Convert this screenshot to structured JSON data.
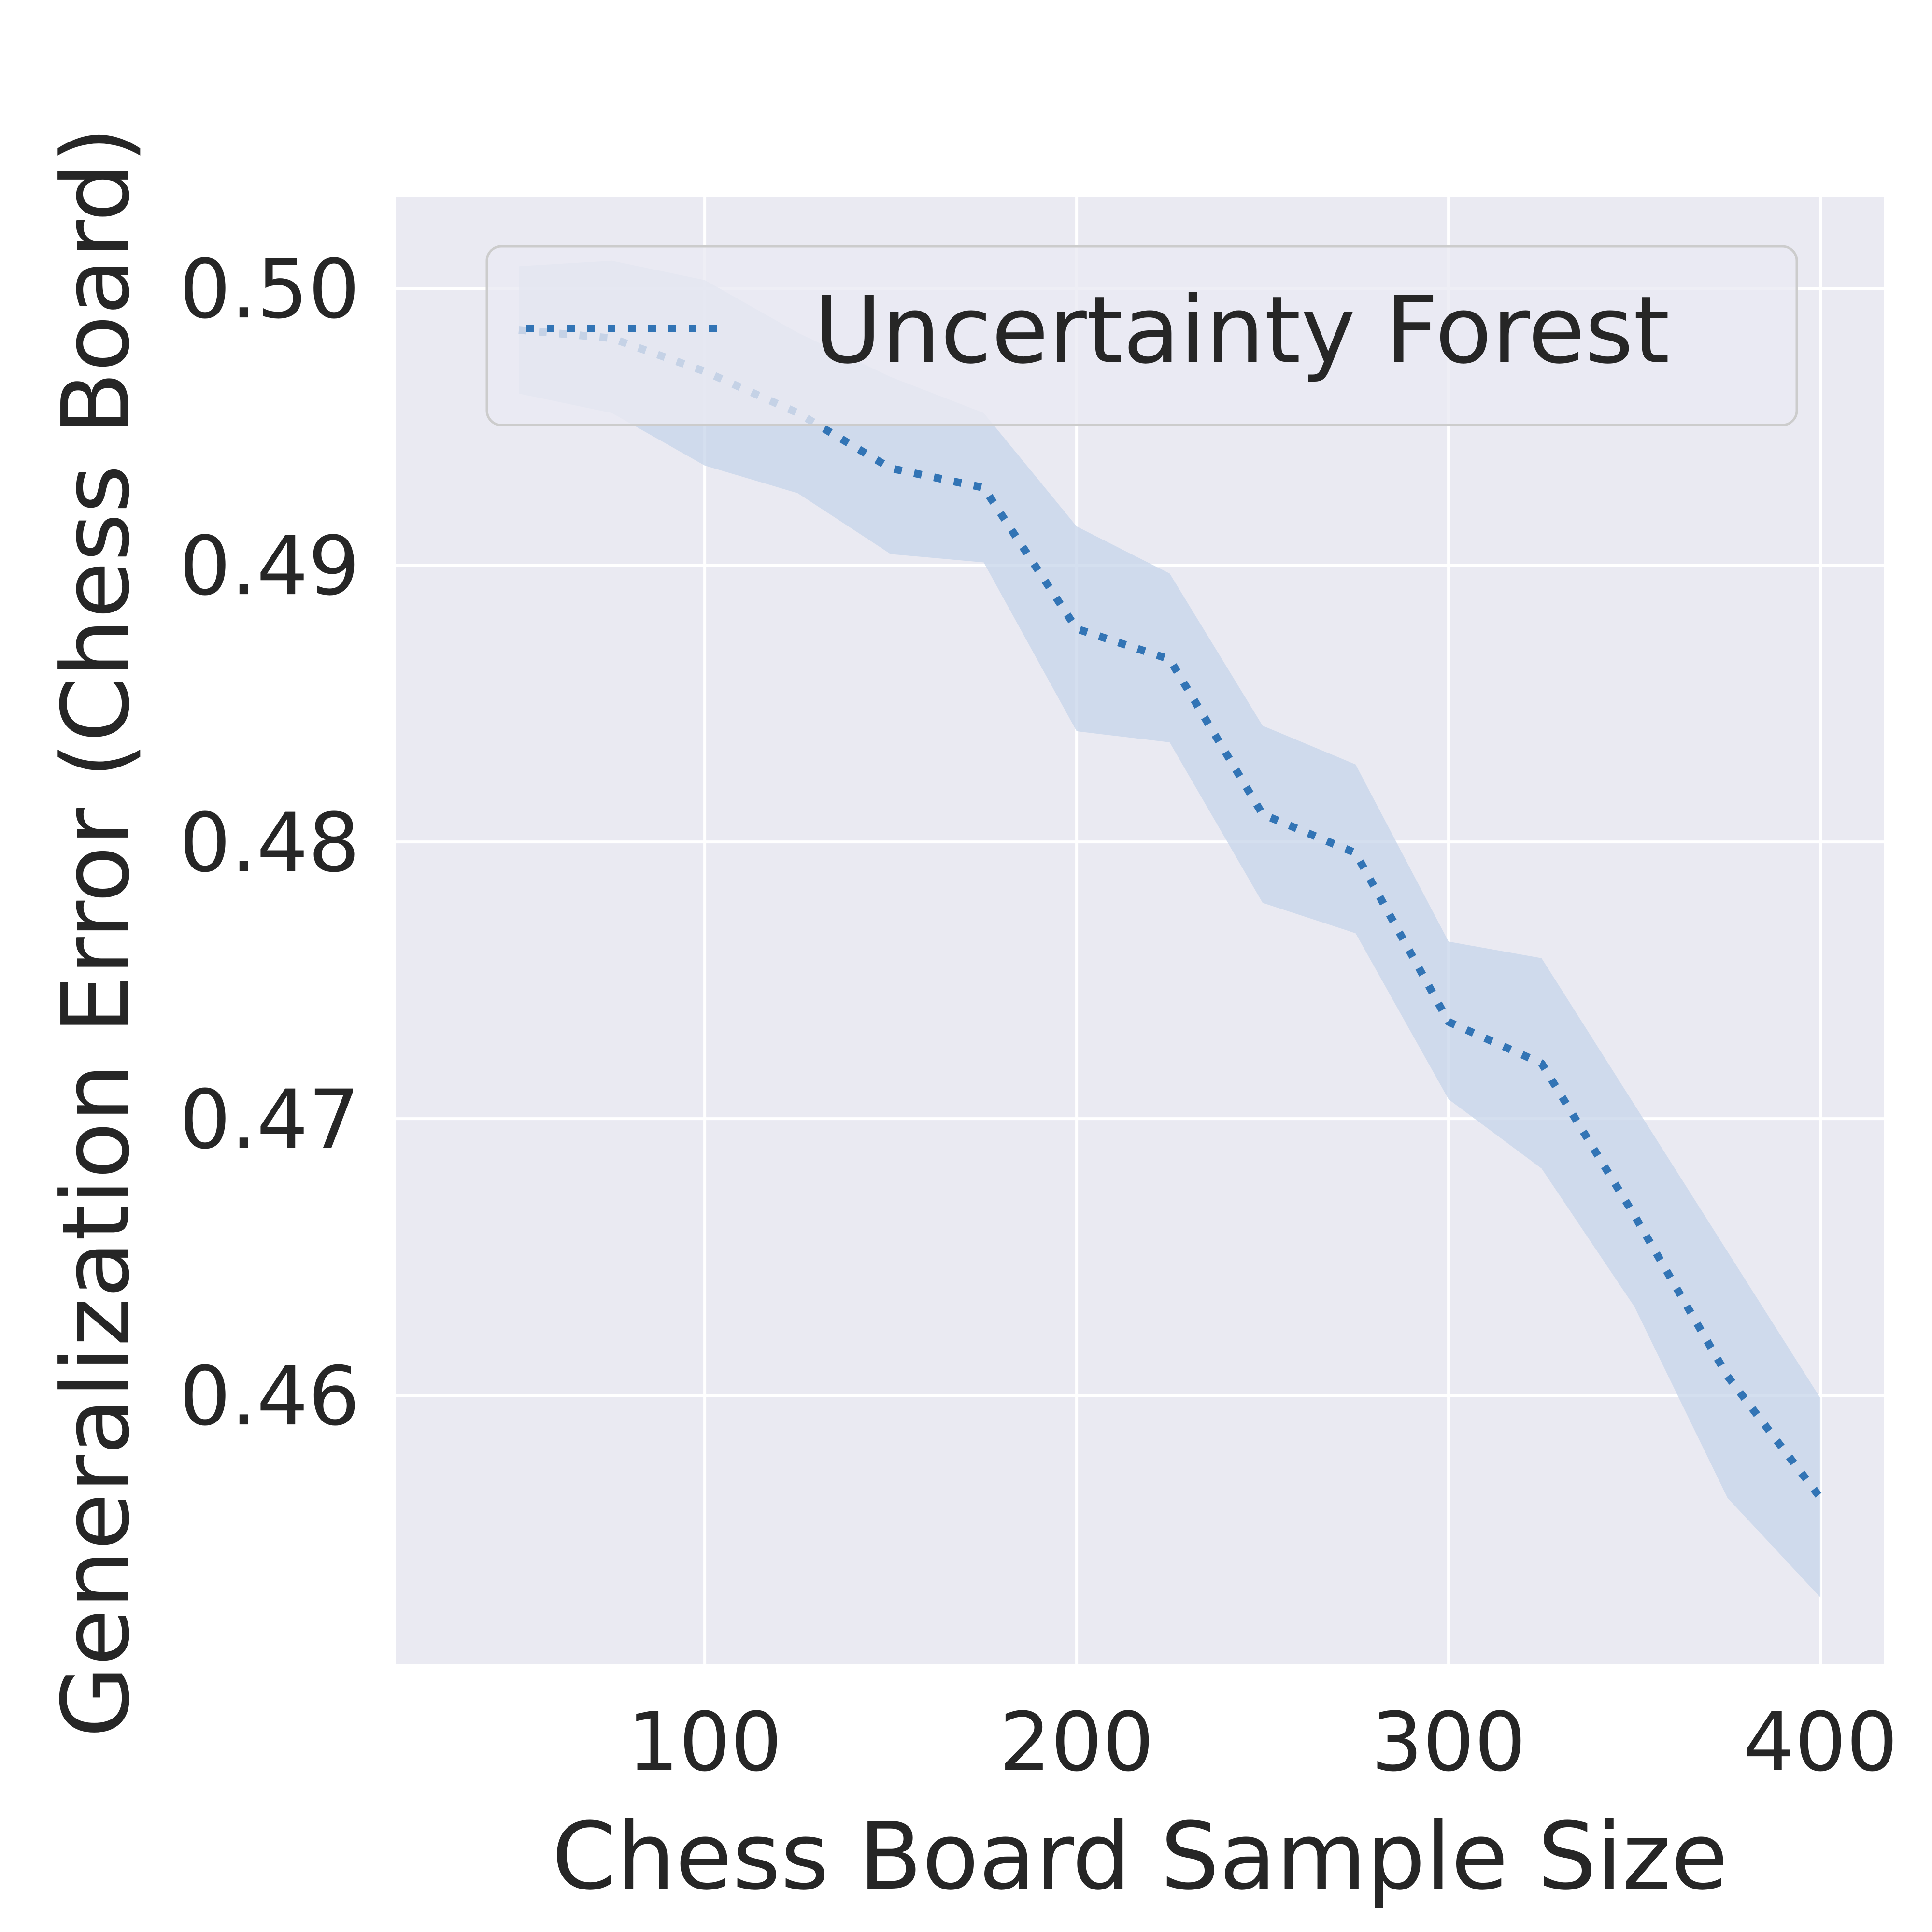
{
  "chart_data": {
    "type": "line",
    "xlabel": "Chess Board Sample Size",
    "ylabel": "Generalization Error (Chess Board)",
    "xlim": [
      17,
      417
    ],
    "ylim": [
      0.4503,
      0.5033
    ],
    "x_ticks": [
      100,
      200,
      300,
      400
    ],
    "x_tick_labels": [
      "100",
      "200",
      "300",
      "400"
    ],
    "y_ticks": [
      0.46,
      0.47,
      0.48,
      0.49,
      0.5
    ],
    "y_tick_labels": [
      "0.46",
      "0.47",
      "0.48",
      "0.49",
      "0.50"
    ],
    "grid": true,
    "legend_position": "top-right",
    "background_color": "#eaeaf2",
    "series": [
      {
        "name": "Uncertainty Forest",
        "color": "#3274b5",
        "band_color": "#c6d4e9",
        "line_style": "dotted",
        "x": [
          50,
          75,
          100,
          125,
          150,
          175,
          200,
          225,
          250,
          275,
          300,
          325,
          350,
          375,
          400
        ],
        "y": [
          0.4985,
          0.4982,
          0.497,
          0.4955,
          0.4935,
          0.4928,
          0.4877,
          0.4866,
          0.481,
          0.4796,
          0.4735,
          0.472,
          0.4665,
          0.4607,
          0.4563
        ],
        "lower": [
          0.4962,
          0.4955,
          0.4936,
          0.4926,
          0.4904,
          0.4901,
          0.484,
          0.4836,
          0.4778,
          0.4767,
          0.4707,
          0.4682,
          0.4632,
          0.4563,
          0.4527
        ],
        "upper": [
          0.5008,
          0.501,
          0.5003,
          0.4984,
          0.4968,
          0.4955,
          0.4914,
          0.4897,
          0.4842,
          0.4828,
          0.4764,
          0.4758,
          0.4705,
          0.4652,
          0.4599
        ]
      }
    ]
  }
}
